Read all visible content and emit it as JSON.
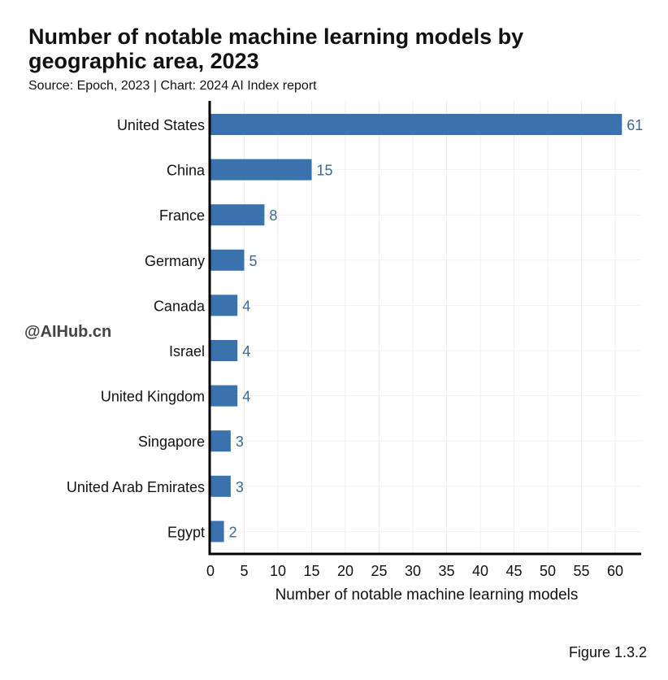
{
  "chart_data": {
    "type": "bar",
    "orientation": "horizontal",
    "title": "Number of notable machine learning models by geographic area, 2023",
    "subtitle": "Source: Epoch, 2023 | Chart: 2024 AI Index report",
    "categories": [
      "United States",
      "China",
      "France",
      "Germany",
      "Canada",
      "Israel",
      "United Kingdom",
      "Singapore",
      "United Arab Emirates",
      "Egypt"
    ],
    "values": [
      61,
      15,
      8,
      5,
      4,
      4,
      4,
      3,
      3,
      2
    ],
    "xlabel": "Number of notable machine learning models",
    "ylabel": "",
    "xlim": [
      0,
      64
    ],
    "xticks": [
      0,
      5,
      10,
      15,
      20,
      25,
      30,
      35,
      40,
      45,
      50,
      55,
      60
    ],
    "grid": true,
    "bar_color": "#3a72ad",
    "label_color": "#3a6a94"
  },
  "watermark": "@AIHub.cn",
  "figure_label": "Figure 1.3.2"
}
